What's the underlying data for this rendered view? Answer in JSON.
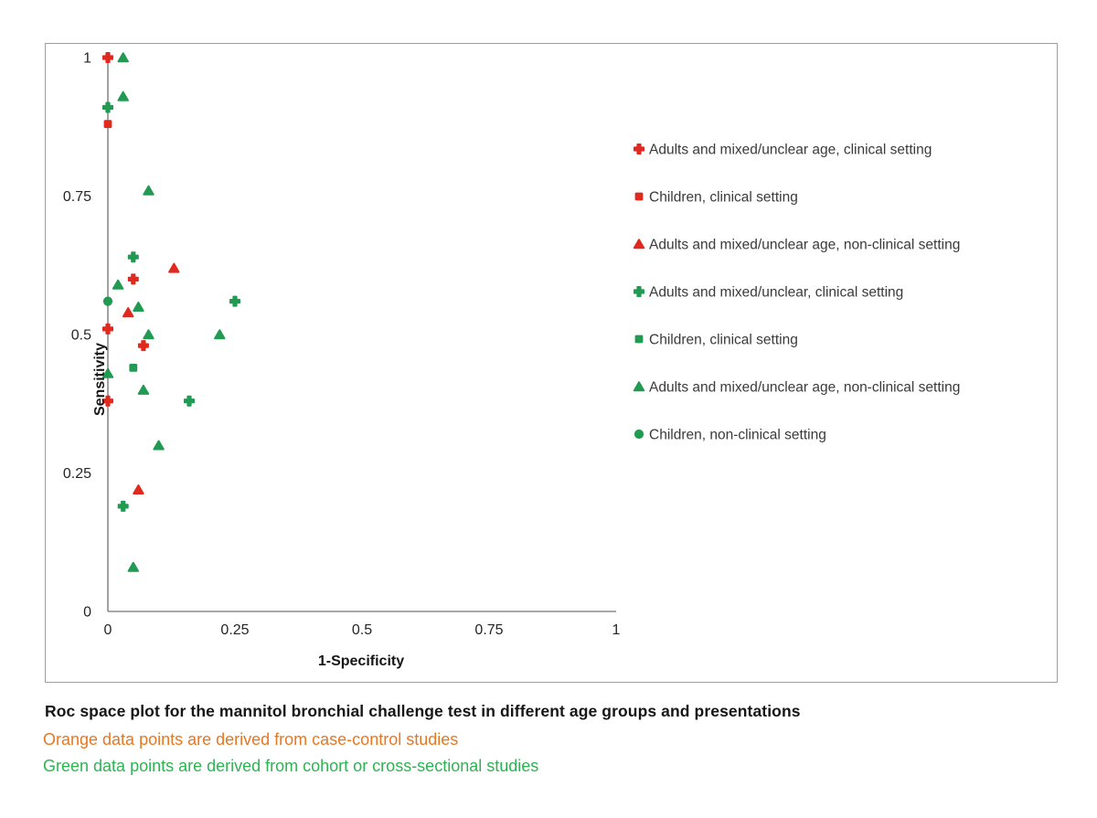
{
  "caption": {
    "title": "Roc space plot for the mannitol bronchial challenge test in different age groups and presentations",
    "orange_note": "Orange data points are derived from case-control studies",
    "green_note": "Green data points are derived from cohort or cross-sectional studies",
    "title_color": "#161616",
    "orange_color": "#e87722",
    "green_color": "#2eb353"
  },
  "chart_data": {
    "type": "scatter",
    "title": "",
    "xlabel": "1-Specificity",
    "ylabel": "Sensitivity",
    "xlim": [
      0,
      1
    ],
    "ylim": [
      0,
      1
    ],
    "x_ticks": [
      0,
      0.25,
      0.5,
      0.75,
      1
    ],
    "y_ticks": [
      0,
      0.25,
      0.5,
      0.75,
      1
    ],
    "grid": false,
    "legend_position": "right",
    "colors": {
      "red": "#e0291f",
      "green": "#219a52",
      "axis": "#8a8a8a",
      "tick_text": "#262626",
      "legend_text": "#3a3a3a"
    },
    "series": [
      {
        "name": "Adults and mixed/unclear age, clinical setting",
        "marker": "plus",
        "color": "red",
        "points": [
          [
            0,
            1.0
          ],
          [
            0.05,
            0.6
          ],
          [
            0,
            0.51
          ],
          [
            0.07,
            0.48
          ],
          [
            0,
            0.38
          ]
        ]
      },
      {
        "name": "Children, clinical setting",
        "marker": "square",
        "color": "red",
        "points": [
          [
            0,
            0.88
          ]
        ]
      },
      {
        "name": "Adults and mixed/unclear age, non-clinical setting",
        "marker": "triangle",
        "color": "red",
        "points": [
          [
            0.13,
            0.62
          ],
          [
            0.04,
            0.54
          ],
          [
            0.06,
            0.22
          ]
        ]
      },
      {
        "name": "Adults and mixed/unclear, clinical setting",
        "marker": "plus",
        "color": "green",
        "points": [
          [
            0,
            0.91
          ],
          [
            0.05,
            0.64
          ],
          [
            0.25,
            0.56
          ],
          [
            0.16,
            0.38
          ],
          [
            0.03,
            0.19
          ]
        ]
      },
      {
        "name": "Children, clinical setting",
        "marker": "square",
        "color": "green",
        "points": [
          [
            0.05,
            0.44
          ]
        ]
      },
      {
        "name": "Adults and mixed/unclear age, non-clinical setting",
        "marker": "triangle",
        "color": "green",
        "points": [
          [
            0.03,
            1.0
          ],
          [
            0.03,
            0.93
          ],
          [
            0.08,
            0.76
          ],
          [
            0.02,
            0.59
          ],
          [
            0.06,
            0.55
          ],
          [
            0.08,
            0.5
          ],
          [
            0.22,
            0.5
          ],
          [
            0,
            0.43
          ],
          [
            0.07,
            0.4
          ],
          [
            0.1,
            0.3
          ],
          [
            0.05,
            0.08
          ]
        ]
      },
      {
        "name": "Children, non-clinical setting",
        "marker": "circle",
        "color": "green",
        "points": [
          [
            0,
            0.56
          ]
        ]
      }
    ]
  }
}
